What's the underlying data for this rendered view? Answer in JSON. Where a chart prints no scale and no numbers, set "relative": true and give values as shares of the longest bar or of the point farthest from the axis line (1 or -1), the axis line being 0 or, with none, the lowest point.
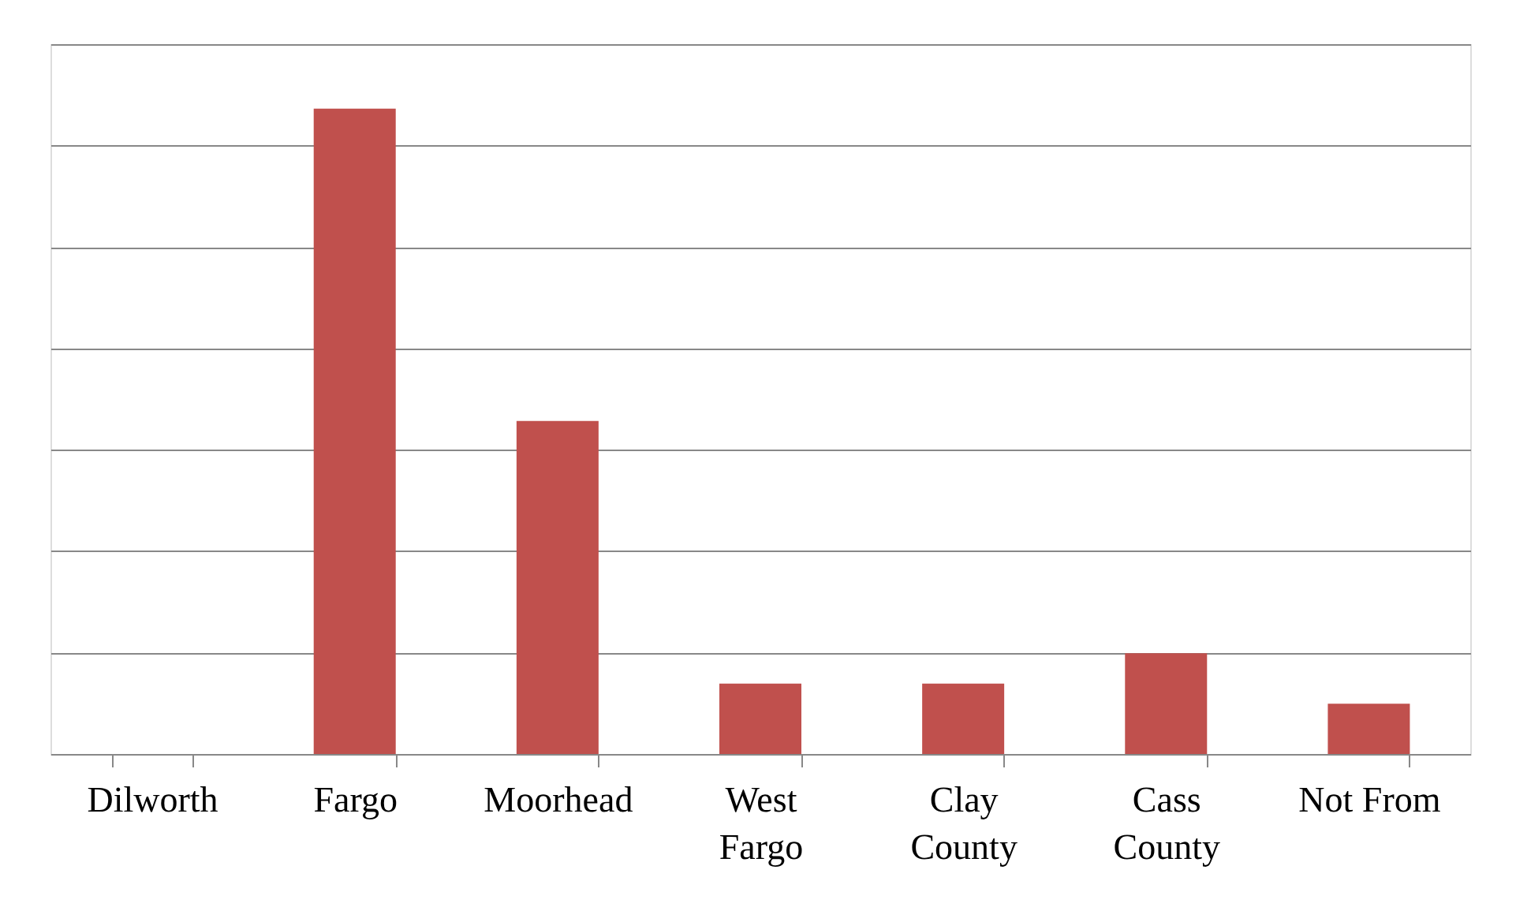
{
  "chart_data": {
    "type": "bar",
    "relative": true,
    "categories": [
      "Dilworth",
      "Fargo",
      "Moorhead",
      "West Fargo",
      "Clay County",
      "Cass County",
      "Not From"
    ],
    "values": [
      0,
      1,
      0.516,
      0.109,
      0.109,
      0.156,
      0.078
    ],
    "color": "#c0504d",
    "grid": "y"
  }
}
